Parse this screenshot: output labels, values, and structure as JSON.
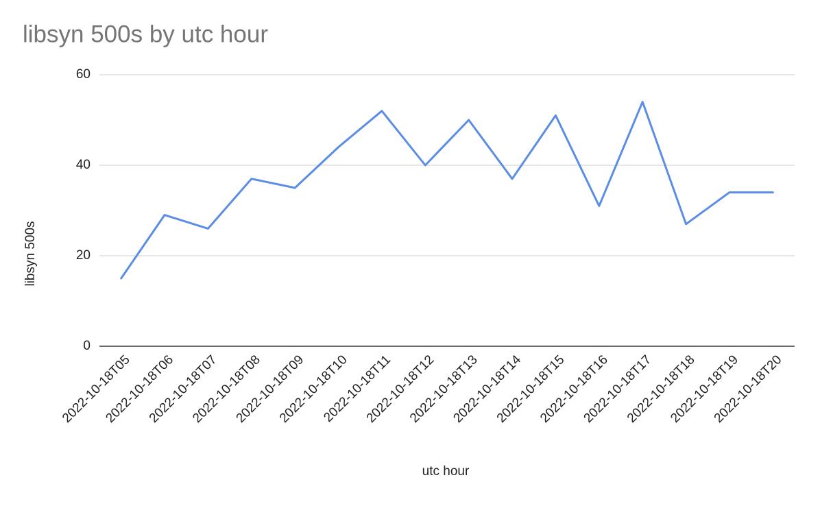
{
  "chart_data": {
    "type": "line",
    "title": "libsyn 500s by utc hour",
    "x_label": "utc hour",
    "y_label": "libsyn 500s",
    "categories": [
      "2022-10-18T05",
      "2022-10-18T06",
      "2022-10-18T07",
      "2022-10-18T08",
      "2022-10-18T09",
      "2022-10-18T10",
      "2022-10-18T11",
      "2022-10-18T12",
      "2022-10-18T13",
      "2022-10-18T14",
      "2022-10-18T15",
      "2022-10-18T16",
      "2022-10-18T17",
      "2022-10-18T18",
      "2022-10-18T19",
      "2022-10-18T20"
    ],
    "series": [
      {
        "name": "libsyn 500s",
        "color": "#5a8de3",
        "values": [
          15,
          29,
          26,
          37,
          35,
          44,
          52,
          40,
          50,
          37,
          51,
          31,
          54,
          27,
          34,
          34
        ]
      }
    ],
    "ylim": [
      0,
      60
    ],
    "yticks": [
      0,
      20,
      40,
      60
    ],
    "grid": true
  }
}
